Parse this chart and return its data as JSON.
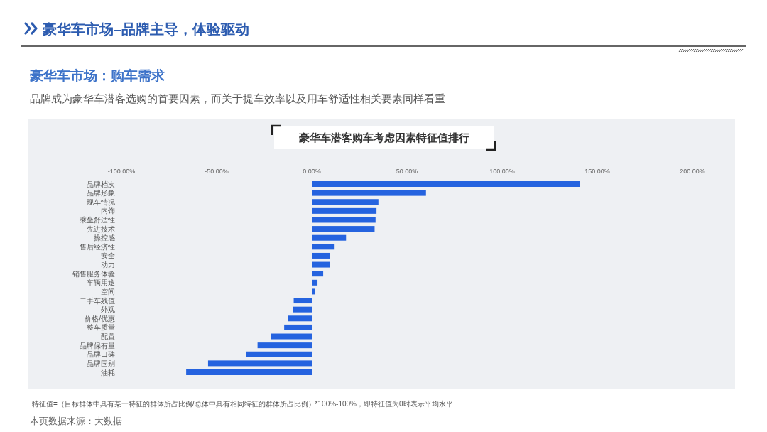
{
  "chart_data": {
    "type": "bar",
    "orientation": "horizontal",
    "title": "豪华车潜客购车考虑因素特征值排行",
    "subtitle": "品牌成为豪华车潜客选购的首要因素，而关于提车效率以及用车舒适性相关要素同样看重",
    "annotations": [
      "豪华车市场–品牌主导，体验驱动",
      "豪华车市场：购车需求",
      "特征值=（目标群体中具有某一特征的群体所占比例/总体中具有相同特征的群体所占比例）*100%-100%，即特征值为0时表示平均水平",
      "本页数据来源：大数据"
    ],
    "categories": [
      "品牌档次",
      "品牌形象",
      "现车情况",
      "内饰",
      "乘坐舒适性",
      "先进技术",
      "操控感",
      "售后经济性",
      "安全",
      "动力",
      "销售服务体验",
      "车辆用途",
      "空间",
      "二手车残值",
      "外观",
      "价格/优惠",
      "整车质量",
      "配置",
      "品牌保有量",
      "品牌口碑",
      "品牌国别",
      "油耗"
    ],
    "values": [
      141,
      60,
      35,
      34,
      33.5,
      33,
      18,
      12,
      9.5,
      9.5,
      6,
      3,
      1.5,
      -9.5,
      -10,
      -12.5,
      -14.5,
      -21.5,
      -28.5,
      -34.5,
      -54.5,
      -66
    ],
    "color": "#2563df",
    "xlim": [
      -100,
      200
    ],
    "xticks": [
      {
        "value": -100,
        "label": "-100.00%"
      },
      {
        "value": -50,
        "label": "-50.00%"
      },
      {
        "value": 0,
        "label": "0.00%"
      },
      {
        "value": 50,
        "label": "50.00%"
      },
      {
        "value": 100,
        "label": "100.00%"
      },
      {
        "value": 150,
        "label": "150.00%"
      },
      {
        "value": 200,
        "label": "200.00%"
      }
    ],
    "grid": false
  }
}
